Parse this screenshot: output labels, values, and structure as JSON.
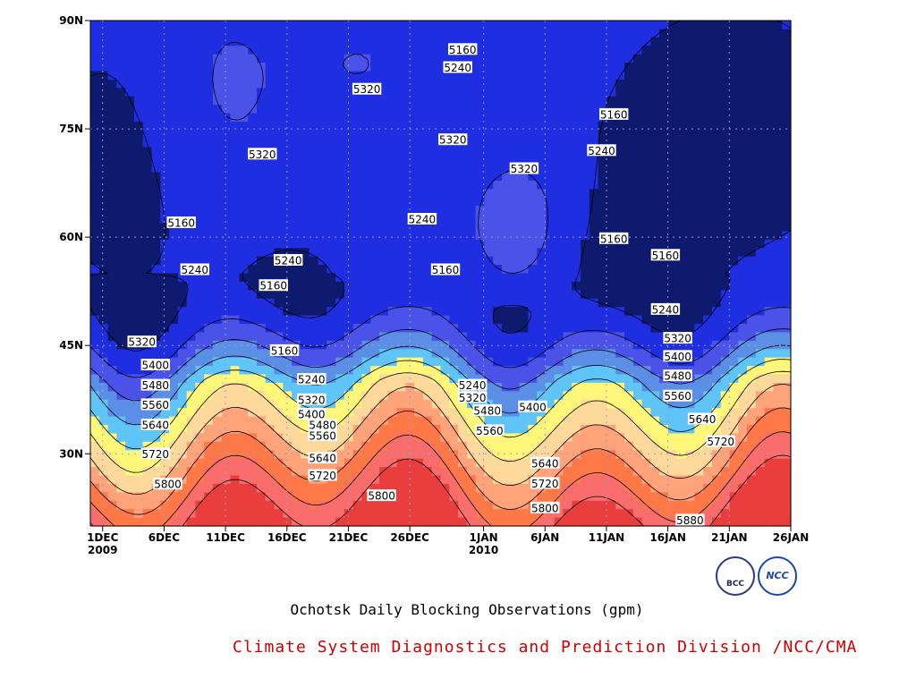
{
  "chart_data": {
    "type": "contour",
    "units": "gpm",
    "xlim_days": [
      0,
      57
    ],
    "x_ticks": [
      {
        "label": "1DEC",
        "year": "2009",
        "day": 1
      },
      {
        "label": "6DEC",
        "day": 6
      },
      {
        "label": "11DEC",
        "day": 11
      },
      {
        "label": "16DEC",
        "day": 16
      },
      {
        "label": "21DEC",
        "day": 21
      },
      {
        "label": "26DEC",
        "day": 26
      },
      {
        "label": "1JAN",
        "year": "2010",
        "day": 32
      },
      {
        "label": "6JAN",
        "day": 37
      },
      {
        "label": "11JAN",
        "day": 42
      },
      {
        "label": "16JAN",
        "day": 47
      },
      {
        "label": "21JAN",
        "day": 52
      },
      {
        "label": "26JAN",
        "day": 57
      }
    ],
    "ylim": [
      20,
      90
    ],
    "y_ticks": [
      {
        "label": "30N",
        "v": 30
      },
      {
        "label": "45N",
        "v": 45
      },
      {
        "label": "60N",
        "v": 60
      },
      {
        "label": "75N",
        "v": 75
      },
      {
        "label": "90N",
        "v": 90
      }
    ],
    "grid": true,
    "levels": [
      5160,
      5240,
      5320,
      5400,
      5480,
      5560,
      5640,
      5720,
      5800,
      5880
    ],
    "band_colors": [
      "#0d1a6e",
      "#1e2ee0",
      "#4a52e8",
      "#5b8fe6",
      "#5fc4f8",
      "#fff77a",
      "#ffd99c",
      "#ffa47a",
      "#ff7848",
      "#f96d6d",
      "#ea3e3e"
    ],
    "contour_labels": [
      {
        "t": "5160",
        "d": 30.3,
        "lat": 86.0
      },
      {
        "t": "5240",
        "d": 29.9,
        "lat": 83.5
      },
      {
        "t": "5320",
        "d": 22.5,
        "lat": 80.5
      },
      {
        "t": "5320",
        "d": 29.5,
        "lat": 73.5
      },
      {
        "t": "5160",
        "d": 42.6,
        "lat": 77.0
      },
      {
        "t": "5240",
        "d": 41.6,
        "lat": 72.0
      },
      {
        "t": "5320",
        "d": 35.3,
        "lat": 69.5
      },
      {
        "t": "5320",
        "d": 14.0,
        "lat": 71.5
      },
      {
        "t": "5160",
        "d": 7.4,
        "lat": 62.0
      },
      {
        "t": "5240",
        "d": 27.0,
        "lat": 62.5
      },
      {
        "t": "5160",
        "d": 42.6,
        "lat": 59.8
      },
      {
        "t": "5160",
        "d": 46.8,
        "lat": 57.5
      },
      {
        "t": "5240",
        "d": 16.1,
        "lat": 56.8
      },
      {
        "t": "5160",
        "d": 28.9,
        "lat": 55.5
      },
      {
        "t": "5240",
        "d": 8.5,
        "lat": 55.5
      },
      {
        "t": "5160",
        "d": 14.9,
        "lat": 53.3
      },
      {
        "t": "5240",
        "d": 46.8,
        "lat": 50.0
      },
      {
        "t": "5320",
        "d": 4.2,
        "lat": 45.5
      },
      {
        "t": "5160",
        "d": 15.8,
        "lat": 44.3
      },
      {
        "t": "5320",
        "d": 47.8,
        "lat": 46.0
      },
      {
        "t": "5400",
        "d": 47.8,
        "lat": 43.5
      },
      {
        "t": "5400",
        "d": 5.3,
        "lat": 42.3
      },
      {
        "t": "5240",
        "d": 18.0,
        "lat": 40.3
      },
      {
        "t": "5480",
        "d": 47.8,
        "lat": 40.8
      },
      {
        "t": "5240",
        "d": 31.1,
        "lat": 39.5
      },
      {
        "t": "5480",
        "d": 5.3,
        "lat": 39.5
      },
      {
        "t": "5320",
        "d": 18.0,
        "lat": 37.5
      },
      {
        "t": "5560",
        "d": 47.8,
        "lat": 38.0
      },
      {
        "t": "5320",
        "d": 31.1,
        "lat": 37.8
      },
      {
        "t": "5400",
        "d": 36.0,
        "lat": 36.5
      },
      {
        "t": "5560",
        "d": 5.3,
        "lat": 36.8
      },
      {
        "t": "5400",
        "d": 18.0,
        "lat": 35.5
      },
      {
        "t": "5480",
        "d": 32.3,
        "lat": 36.0
      },
      {
        "t": "5640",
        "d": 49.8,
        "lat": 34.8
      },
      {
        "t": "5480",
        "d": 18.9,
        "lat": 34.0
      },
      {
        "t": "5640",
        "d": 5.3,
        "lat": 34.0
      },
      {
        "t": "5560",
        "d": 32.5,
        "lat": 33.2
      },
      {
        "t": "5560",
        "d": 18.9,
        "lat": 32.5
      },
      {
        "t": "5720",
        "d": 51.3,
        "lat": 31.7
      },
      {
        "t": "5720",
        "d": 5.3,
        "lat": 30.0
      },
      {
        "t": "5640",
        "d": 18.9,
        "lat": 29.4
      },
      {
        "t": "5640",
        "d": 37.0,
        "lat": 28.7
      },
      {
        "t": "5720",
        "d": 18.9,
        "lat": 27.0
      },
      {
        "t": "5800",
        "d": 6.3,
        "lat": 25.8
      },
      {
        "t": "5720",
        "d": 37.0,
        "lat": 25.9
      },
      {
        "t": "5800",
        "d": 23.7,
        "lat": 24.2
      },
      {
        "t": "5800",
        "d": 37.0,
        "lat": 22.5
      },
      {
        "t": "5880",
        "d": 48.8,
        "lat": 20.8
      }
    ]
  },
  "caption_main": "Ochotsk Daily Blocking Observations (gpm)",
  "caption_sub": "Climate System Diagnostics and Prediction Division /NCC/CMA",
  "logos": {
    "left": "BCC",
    "right": "NCC"
  }
}
